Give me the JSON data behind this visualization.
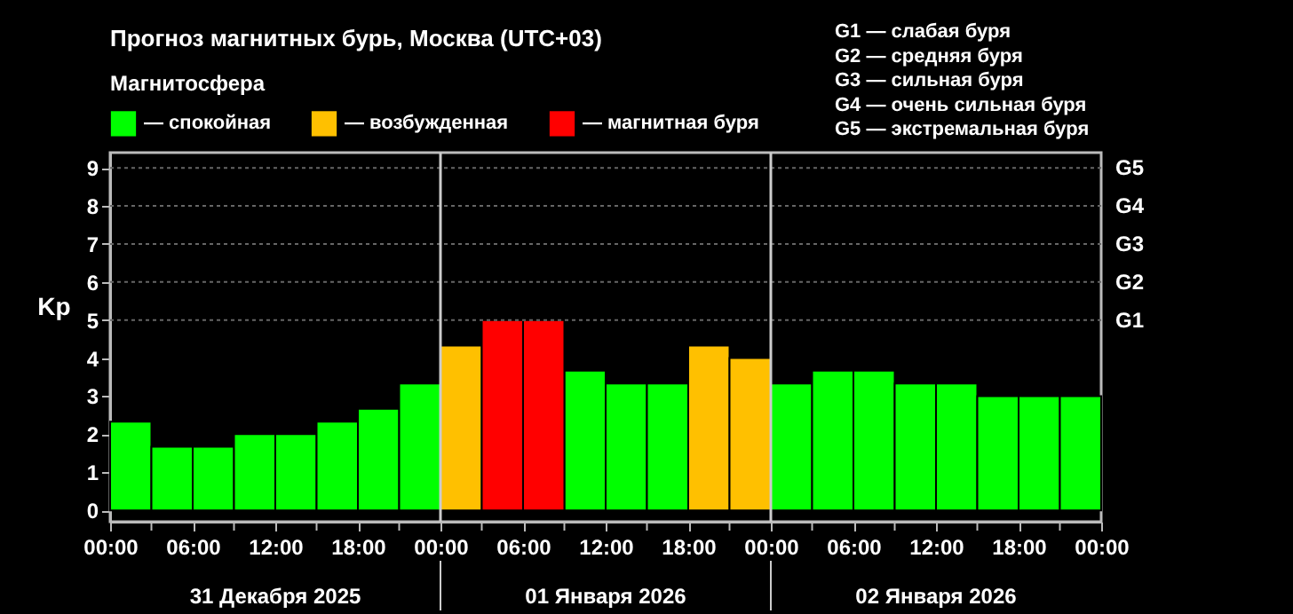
{
  "chart_data": {
    "type": "bar",
    "title": "Прогноз магнитных бурь, Москва (UTC+03)",
    "ylabel": "Kp",
    "legend_title": "Магнитосфера",
    "legend": "top left",
    "x": [
      "2025-12-31T01:30",
      "2025-12-31T04:30",
      "2025-12-31T07:30",
      "2025-12-31T10:30",
      "2025-12-31T13:30",
      "2025-12-31T16:30",
      "2025-12-31T19:30",
      "2025-12-31T22:30",
      "2026-01-01T01:30",
      "2026-01-01T04:30",
      "2026-01-01T07:30",
      "2026-01-01T10:30",
      "2026-01-01T13:30",
      "2026-01-01T16:30",
      "2026-01-01T19:30",
      "2026-01-01T22:30",
      "2026-01-02T01:30",
      "2026-01-02T04:30",
      "2026-01-02T07:30",
      "2026-01-02T10:30",
      "2026-01-02T13:30",
      "2026-01-02T16:30",
      "2026-01-02T19:30",
      "2026-01-02T22:30"
    ],
    "series": [
      {
        "name": "— спокойная",
        "color": "#00ff00",
        "values": [
          2.33,
          1.67,
          1.67,
          2,
          2,
          2.33,
          2.67,
          3.33,
          null,
          null,
          null,
          3.67,
          3.33,
          3.33,
          null,
          null,
          3.33,
          3.67,
          3.67,
          3.33,
          3.33,
          3,
          3,
          3
        ]
      },
      {
        "name": "— возбужденная",
        "color": "#ffc000",
        "values": [
          null,
          null,
          null,
          null,
          null,
          null,
          null,
          null,
          4.33,
          null,
          null,
          null,
          null,
          null,
          4.33,
          4,
          null,
          null,
          null,
          null,
          null,
          null,
          null,
          null
        ]
      },
      {
        "name": "— магнитная буря",
        "color": "#ff0000",
        "values": [
          null,
          null,
          null,
          null,
          null,
          null,
          null,
          null,
          null,
          5,
          5,
          null,
          null,
          null,
          null,
          null,
          null,
          null,
          null,
          null,
          null,
          null,
          null,
          null
        ]
      }
    ],
    "xlim": [
      "2025-12-31T00:00",
      "2026-01-03T00:00"
    ],
    "xticks": [
      {
        "value": "2025-12-31T00:00",
        "label": "00:00"
      },
      {
        "value": "2025-12-31T03:00",
        "label": null
      },
      {
        "value": "2025-12-31T06:00",
        "label": "06:00"
      },
      {
        "value": "2025-12-31T09:00",
        "label": null
      },
      {
        "value": "2025-12-31T12:00",
        "label": "12:00"
      },
      {
        "value": "2025-12-31T15:00",
        "label": null
      },
      {
        "value": "2025-12-31T18:00",
        "label": "18:00"
      },
      {
        "value": "2025-12-31T21:00",
        "label": null
      },
      {
        "value": "2026-01-01T00:00",
        "label": "00:00"
      },
      {
        "value": "2026-01-01T03:00",
        "label": null
      },
      {
        "value": "2026-01-01T06:00",
        "label": "06:00"
      },
      {
        "value": "2026-01-01T09:00",
        "label": null
      },
      {
        "value": "2026-01-01T12:00",
        "label": "12:00"
      },
      {
        "value": "2026-01-01T15:00",
        "label": null
      },
      {
        "value": "2026-01-01T18:00",
        "label": "18:00"
      },
      {
        "value": "2026-01-01T21:00",
        "label": null
      },
      {
        "value": "2026-01-02T00:00",
        "label": "00:00"
      },
      {
        "value": "2026-01-02T03:00",
        "label": null
      },
      {
        "value": "2026-01-02T06:00",
        "label": "06:00"
      },
      {
        "value": "2026-01-02T09:00",
        "label": null
      },
      {
        "value": "2026-01-02T12:00",
        "label": "12:00"
      },
      {
        "value": "2026-01-02T15:00",
        "label": null
      },
      {
        "value": "2026-01-02T18:00",
        "label": "18:00"
      },
      {
        "value": "2026-01-02T21:00",
        "label": null
      },
      {
        "value": "2026-01-03T00:00",
        "label": "00:00"
      }
    ],
    "ylim": [
      -0.3,
      9.4
    ],
    "yticks": [
      0,
      1,
      2,
      3,
      4,
      5,
      6,
      7,
      8,
      9
    ],
    "ref_lines": [
      {
        "axis": "x",
        "value": "2026-01-01T00:00",
        "color": "#cccccc"
      },
      {
        "axis": "x",
        "value": "2026-01-02T00:00",
        "color": "#cccccc"
      },
      {
        "axis": "y",
        "value": 5,
        "label": "G1",
        "color": "#666666",
        "line_style": "dotted"
      },
      {
        "axis": "y",
        "value": 6,
        "label": "G2",
        "color": "#666666",
        "line_style": "dotted"
      },
      {
        "axis": "y",
        "value": 7,
        "label": "G3",
        "color": "#666666",
        "line_style": "dotted"
      },
      {
        "axis": "y",
        "value": 8,
        "label": "G4",
        "color": "#666666",
        "line_style": "dotted"
      },
      {
        "axis": "y",
        "value": 9,
        "label": "G5",
        "color": "#666666",
        "line_style": "dotted"
      }
    ],
    "annotations": [
      "31 Декабря 2025",
      "01 Января 2026",
      "02 Января 2026",
      "G1 — слабая буря",
      "G2 — средняя буря",
      "G3 — сильная буря",
      "G4 — очень сильная буря",
      "G5 — экстремальная буря"
    ]
  }
}
